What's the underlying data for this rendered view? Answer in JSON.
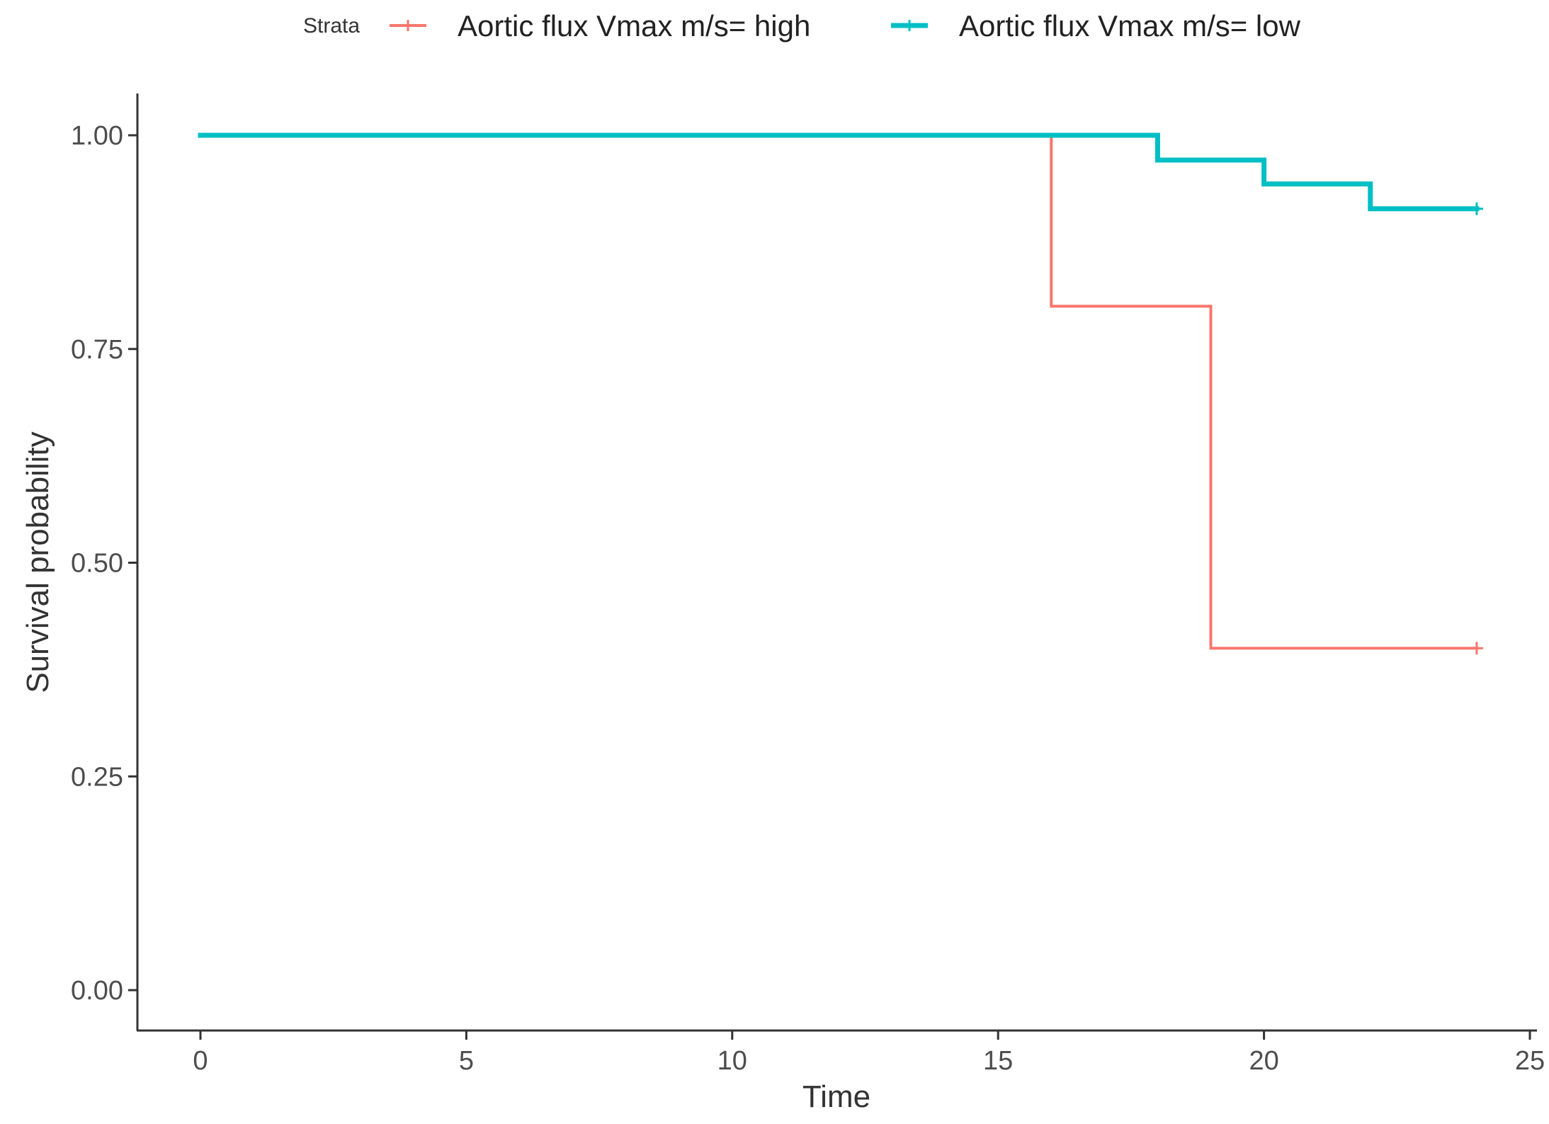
{
  "legend": {
    "title": "Strata",
    "position": "top"
  },
  "chart_data": {
    "type": "line",
    "subtype": "kaplan-meier step",
    "title": "",
    "xlabel": "Time",
    "ylabel": "Survival probability",
    "xlim": [
      0,
      25
    ],
    "ylim": [
      0,
      1
    ],
    "x_ticks": [
      0,
      5,
      10,
      15,
      20,
      25
    ],
    "y_ticks": [
      0,
      0.25,
      0.5,
      0.75,
      1
    ],
    "x_tick_labels": [
      "0",
      "5",
      "10",
      "15",
      "20",
      "25"
    ],
    "y_tick_labels": [
      "0.00",
      "0.25",
      "0.50",
      "0.75",
      "1.00"
    ],
    "grid": false,
    "series": [
      {
        "name": "Aortic flux Vmax m/s= high",
        "color": "#f8766d",
        "steps": [
          {
            "x": 0,
            "y": 1.0
          },
          {
            "x": 16,
            "y": 0.8
          },
          {
            "x": 19,
            "y": 0.4
          }
        ],
        "end_x": 24,
        "censor": [
          {
            "x": 24,
            "y": 0.4
          }
        ]
      },
      {
        "name": "Aortic flux Vmax m/s= low",
        "color": "#00bfc4",
        "steps": [
          {
            "x": 0,
            "y": 1.0
          },
          {
            "x": 18,
            "y": 0.971
          },
          {
            "x": 20,
            "y": 0.943
          },
          {
            "x": 22,
            "y": 0.914
          }
        ],
        "end_x": 24,
        "censor": [
          {
            "x": 24,
            "y": 0.914
          }
        ]
      }
    ]
  }
}
